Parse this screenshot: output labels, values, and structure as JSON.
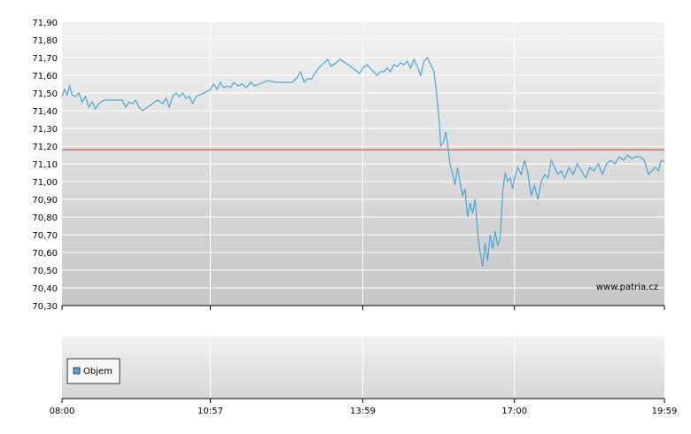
{
  "chart_data": {
    "type": "line",
    "watermark": "www.patria.cz",
    "yticks": [
      "71,90",
      "71,80",
      "71,70",
      "71,60",
      "71,50",
      "71,40",
      "71,30",
      "71,20",
      "71,10",
      "71,00",
      "70,90",
      "70,80",
      "70,70",
      "70,60",
      "70,50",
      "70,40",
      "70,30"
    ],
    "ylim": [
      70.3,
      71.9
    ],
    "xticks": [
      "08:00",
      "10:57",
      "13:59",
      "17:00",
      "19:59"
    ],
    "xlim": [
      "08:00",
      "19:59"
    ],
    "reference_line": 71.18,
    "grid": true,
    "legend": {
      "label": "Objem",
      "placement": "bottom-left"
    },
    "colors": {
      "line": "#4aa6d6",
      "reference": "#cc3333",
      "legend_swatch": "#4aa6d6"
    },
    "series": [
      {
        "points": [
          [
            "08:00",
            71.48
          ],
          [
            "08:03",
            71.52
          ],
          [
            "08:06",
            71.49
          ],
          [
            "08:09",
            71.54
          ],
          [
            "08:12",
            71.49
          ],
          [
            "08:16",
            71.48
          ],
          [
            "08:20",
            71.5
          ],
          [
            "08:24",
            71.45
          ],
          [
            "08:28",
            71.48
          ],
          [
            "08:32",
            71.42
          ],
          [
            "08:36",
            71.45
          ],
          [
            "08:40",
            71.41
          ],
          [
            "08:44",
            71.44
          ],
          [
            "08:50",
            71.46
          ],
          [
            "08:58",
            71.46
          ],
          [
            "09:06",
            71.46
          ],
          [
            "09:12",
            71.46
          ],
          [
            "09:16",
            71.42
          ],
          [
            "09:20",
            71.45
          ],
          [
            "09:24",
            71.44
          ],
          [
            "09:28",
            71.46
          ],
          [
            "09:32",
            71.42
          ],
          [
            "09:36",
            71.4
          ],
          [
            "09:42",
            71.42
          ],
          [
            "09:48",
            71.44
          ],
          [
            "09:54",
            71.46
          ],
          [
            "10:00",
            71.44
          ],
          [
            "10:04",
            71.47
          ],
          [
            "10:08",
            71.42
          ],
          [
            "10:12",
            71.48
          ],
          [
            "10:16",
            71.5
          ],
          [
            "10:20",
            71.48
          ],
          [
            "10:24",
            71.5
          ],
          [
            "10:28",
            71.47
          ],
          [
            "10:32",
            71.48
          ],
          [
            "10:36",
            71.44
          ],
          [
            "10:40",
            71.48
          ],
          [
            "10:44",
            71.49
          ],
          [
            "10:50",
            71.5
          ],
          [
            "10:57",
            71.52
          ],
          [
            "11:01",
            71.55
          ],
          [
            "11:05",
            71.52
          ],
          [
            "11:09",
            71.56
          ],
          [
            "11:13",
            71.53
          ],
          [
            "11:17",
            71.54
          ],
          [
            "11:21",
            71.53
          ],
          [
            "11:25",
            71.56
          ],
          [
            "11:30",
            71.54
          ],
          [
            "11:35",
            71.55
          ],
          [
            "11:40",
            71.53
          ],
          [
            "11:45",
            71.56
          ],
          [
            "11:50",
            71.54
          ],
          [
            "11:55",
            71.55
          ],
          [
            "12:05",
            71.57
          ],
          [
            "12:15",
            71.56
          ],
          [
            "12:25",
            71.56
          ],
          [
            "12:35",
            71.56
          ],
          [
            "12:41",
            71.59
          ],
          [
            "12:45",
            71.62
          ],
          [
            "12:49",
            71.56
          ],
          [
            "12:53",
            71.58
          ],
          [
            "12:58",
            71.58
          ],
          [
            "13:03",
            71.62
          ],
          [
            "13:08",
            71.65
          ],
          [
            "13:13",
            71.67
          ],
          [
            "13:17",
            71.69
          ],
          [
            "13:21",
            71.65
          ],
          [
            "13:27",
            71.67
          ],
          [
            "13:32",
            71.69
          ],
          [
            "13:38",
            71.67
          ],
          [
            "13:44",
            71.65
          ],
          [
            "13:50",
            71.63
          ],
          [
            "13:55",
            71.61
          ],
          [
            "13:59",
            71.64
          ],
          [
            "14:04",
            71.66
          ],
          [
            "14:08",
            71.64
          ],
          [
            "14:12",
            71.62
          ],
          [
            "14:16",
            71.6
          ],
          [
            "14:20",
            71.62
          ],
          [
            "14:24",
            71.62
          ],
          [
            "14:28",
            71.64
          ],
          [
            "14:32",
            71.62
          ],
          [
            "14:36",
            71.66
          ],
          [
            "14:40",
            71.65
          ],
          [
            "14:44",
            71.67
          ],
          [
            "14:48",
            71.66
          ],
          [
            "14:52",
            71.68
          ],
          [
            "14:56",
            71.64
          ],
          [
            "15:00",
            71.69
          ],
          [
            "15:04",
            71.65
          ],
          [
            "15:08",
            71.6
          ],
          [
            "15:12",
            71.68
          ],
          [
            "15:16",
            71.7
          ],
          [
            "15:20",
            71.66
          ],
          [
            "15:24",
            71.62
          ],
          [
            "15:27",
            71.5
          ],
          [
            "15:30",
            71.35
          ],
          [
            "15:32",
            71.2
          ],
          [
            "15:35",
            71.22
          ],
          [
            "15:38",
            71.28
          ],
          [
            "15:40",
            71.22
          ],
          [
            "15:43",
            71.1
          ],
          [
            "15:46",
            71.05
          ],
          [
            "15:49",
            70.98
          ],
          [
            "15:52",
            71.08
          ],
          [
            "15:55",
            71.0
          ],
          [
            "15:58",
            70.92
          ],
          [
            "16:01",
            70.96
          ],
          [
            "16:04",
            70.8
          ],
          [
            "16:07",
            70.88
          ],
          [
            "16:10",
            70.82
          ],
          [
            "16:13",
            70.9
          ],
          [
            "16:16",
            70.72
          ],
          [
            "16:19",
            70.6
          ],
          [
            "16:22",
            70.52
          ],
          [
            "16:25",
            70.65
          ],
          [
            "16:28",
            70.55
          ],
          [
            "16:31",
            70.7
          ],
          [
            "16:34",
            70.62
          ],
          [
            "16:37",
            70.72
          ],
          [
            "16:40",
            70.64
          ],
          [
            "16:43",
            70.68
          ],
          [
            "16:46",
            70.95
          ],
          [
            "16:49",
            71.05
          ],
          [
            "16:52",
            71.0
          ],
          [
            "16:55",
            71.02
          ],
          [
            "16:58",
            70.96
          ],
          [
            "17:00",
            71.02
          ],
          [
            "17:04",
            71.08
          ],
          [
            "17:08",
            71.04
          ],
          [
            "17:12",
            71.12
          ],
          [
            "17:16",
            71.05
          ],
          [
            "17:20",
            70.92
          ],
          [
            "17:24",
            70.98
          ],
          [
            "17:28",
            70.9
          ],
          [
            "17:32",
            71.0
          ],
          [
            "17:36",
            71.04
          ],
          [
            "17:40",
            71.02
          ],
          [
            "17:44",
            71.12
          ],
          [
            "17:48",
            71.08
          ],
          [
            "17:52",
            71.04
          ],
          [
            "17:56",
            71.06
          ],
          [
            "18:00",
            71.02
          ],
          [
            "18:05",
            71.08
          ],
          [
            "18:10",
            71.04
          ],
          [
            "18:15",
            71.1
          ],
          [
            "18:20",
            71.06
          ],
          [
            "18:25",
            71.02
          ],
          [
            "18:30",
            71.08
          ],
          [
            "18:35",
            71.06
          ],
          [
            "18:40",
            71.1
          ],
          [
            "18:45",
            71.04
          ],
          [
            "18:50",
            71.1
          ],
          [
            "18:55",
            71.12
          ],
          [
            "19:00",
            71.1
          ],
          [
            "19:05",
            71.14
          ],
          [
            "19:10",
            71.12
          ],
          [
            "19:15",
            71.15
          ],
          [
            "19:20",
            71.13
          ],
          [
            "19:25",
            71.14
          ],
          [
            "19:30",
            71.14
          ],
          [
            "19:35",
            71.12
          ],
          [
            "19:40",
            71.04
          ],
          [
            "19:44",
            71.06
          ],
          [
            "19:48",
            71.08
          ],
          [
            "19:52",
            71.06
          ],
          [
            "19:55",
            71.12
          ],
          [
            "19:59",
            71.11
          ]
        ]
      }
    ]
  }
}
